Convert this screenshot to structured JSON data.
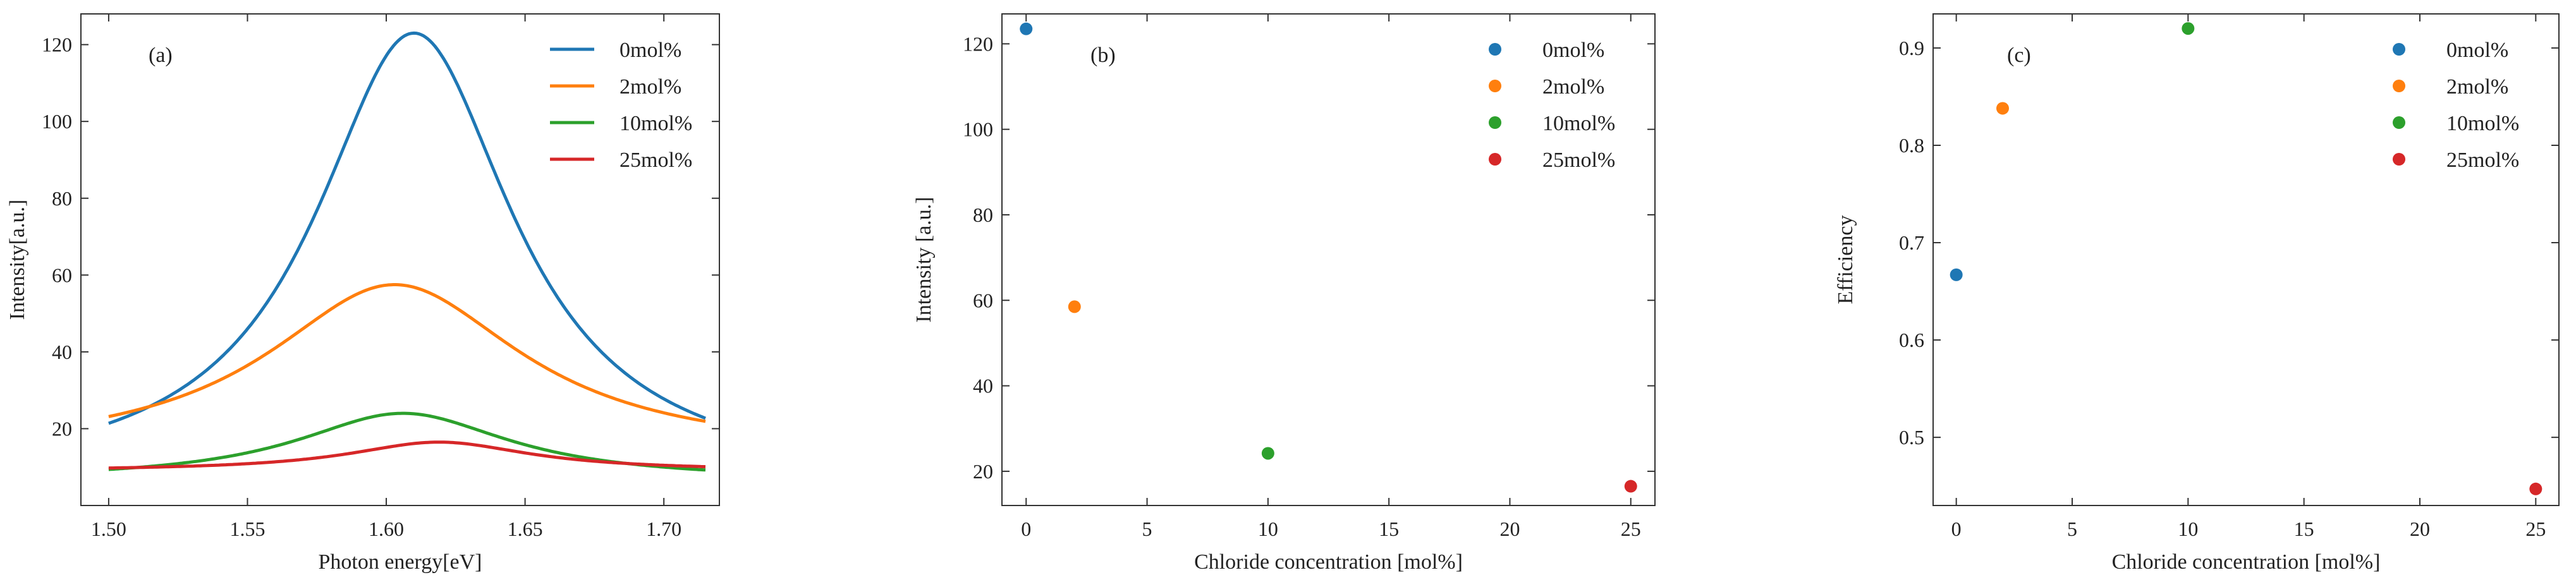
{
  "colors": {
    "s0": "#1f77b4",
    "s2": "#ff7f0e",
    "s10": "#2ca02c",
    "s25": "#d62728"
  },
  "chart_data": [
    {
      "id": "a",
      "panel_label": "(a)",
      "type": "line",
      "xlabel": "Photon energy[eV]",
      "ylabel": "Intensity[a.u.]",
      "xlim": [
        1.49,
        1.72
      ],
      "ylim": [
        0,
        128
      ],
      "xticks": [
        1.5,
        1.55,
        1.6,
        1.65,
        1.7
      ],
      "xtick_labels": [
        "1.50",
        "1.55",
        "1.60",
        "1.65",
        "1.70"
      ],
      "yticks": [
        20,
        40,
        60,
        80,
        100,
        120
      ],
      "ytick_labels": [
        "20",
        "40",
        "60",
        "80",
        "100",
        "120"
      ],
      "x_range": [
        1.5,
        1.715
      ],
      "legend_position": "top-right",
      "series": [
        {
          "name": "0mol%",
          "color_key": "s0",
          "baseline": 5.5,
          "amplitude": 117.5,
          "center": 1.61,
          "width": 0.0435
        },
        {
          "name": "2mol%",
          "color_key": "s2",
          "baseline": 13.0,
          "amplitude": 44.5,
          "center": 1.603,
          "width": 0.056
        },
        {
          "name": "10mol%",
          "color_key": "s10",
          "baseline": 6.5,
          "amplitude": 17.5,
          "center": 1.606,
          "width": 0.047
        },
        {
          "name": "25mol%",
          "color_key": "s25",
          "baseline": 9.0,
          "amplitude": 7.5,
          "center": 1.619,
          "width": 0.04
        }
      ]
    },
    {
      "id": "b",
      "panel_label": "(b)",
      "type": "scatter",
      "xlabel": "Chloride concentration [mol%]",
      "ylabel": "Intensity [a.u.]",
      "xlim": [
        -1,
        26
      ],
      "ylim": [
        12,
        127
      ],
      "xticks": [
        0,
        5,
        10,
        15,
        20,
        25
      ],
      "xtick_labels": [
        "0",
        "5",
        "10",
        "15",
        "20",
        "25"
      ],
      "yticks": [
        20,
        40,
        60,
        80,
        100,
        120
      ],
      "ytick_labels": [
        "20",
        "40",
        "60",
        "80",
        "100",
        "120"
      ],
      "legend_position": "top-right",
      "series": [
        {
          "name": "0mol%",
          "color_key": "s0",
          "x": [
            0
          ],
          "y": [
            123.5
          ]
        },
        {
          "name": "2mol%",
          "color_key": "s2",
          "x": [
            2
          ],
          "y": [
            58.5
          ]
        },
        {
          "name": "10mol%",
          "color_key": "s10",
          "x": [
            10
          ],
          "y": [
            24.2
          ]
        },
        {
          "name": "25mol%",
          "color_key": "s25",
          "x": [
            25
          ],
          "y": [
            16.5
          ]
        }
      ]
    },
    {
      "id": "c",
      "panel_label": "(c)",
      "type": "scatter",
      "xlabel": "Chloride concentration [mol%]",
      "ylabel": "Efficiency",
      "xlim": [
        -1,
        26
      ],
      "ylim": [
        0.43,
        0.935
      ],
      "xticks": [
        0,
        5,
        10,
        15,
        20,
        25
      ],
      "xtick_labels": [
        "0",
        "5",
        "10",
        "15",
        "20",
        "25"
      ],
      "yticks": [
        0.5,
        0.6,
        0.7,
        0.8,
        0.9
      ],
      "ytick_labels": [
        "0.5",
        "0.6",
        "0.7",
        "0.8",
        "0.9"
      ],
      "legend_position": "top-right",
      "series": [
        {
          "name": "0mol%",
          "color_key": "s0",
          "x": [
            0
          ],
          "y": [
            0.667
          ]
        },
        {
          "name": "2mol%",
          "color_key": "s2",
          "x": [
            2
          ],
          "y": [
            0.838
          ]
        },
        {
          "name": "10mol%",
          "color_key": "s10",
          "x": [
            10
          ],
          "y": [
            0.92
          ]
        },
        {
          "name": "25mol%",
          "color_key": "s25",
          "x": [
            25
          ],
          "y": [
            0.447
          ]
        }
      ]
    }
  ]
}
